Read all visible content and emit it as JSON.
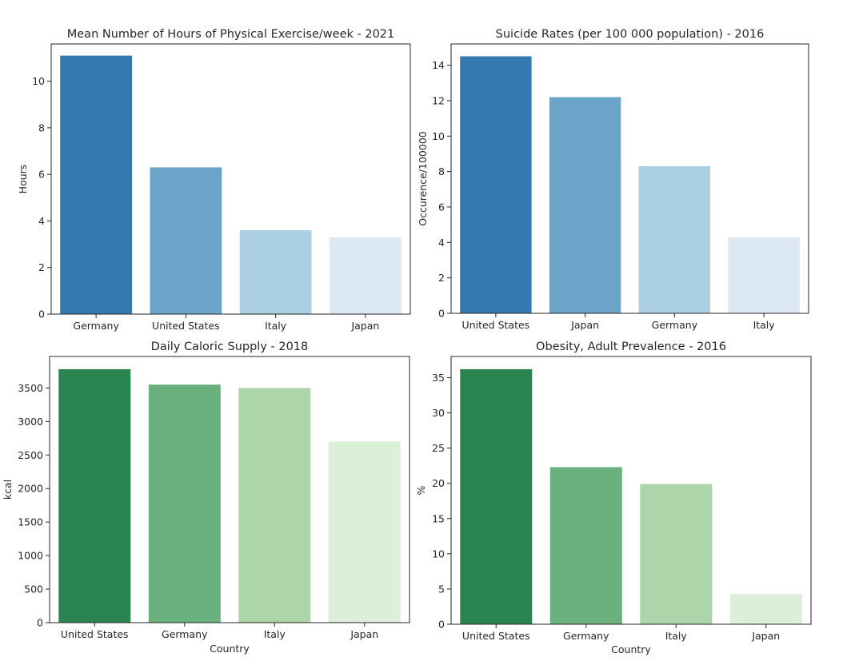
{
  "chart_data": [
    {
      "type": "bar",
      "title": "Mean Number of Hours of Physical Exercise/week - 2021",
      "xlabel": "",
      "ylabel": "Hours",
      "categories": [
        "Germany",
        "United States",
        "Italy",
        "Japan"
      ],
      "values": [
        11.1,
        6.3,
        3.6,
        3.3
      ],
      "ylim": [
        0,
        11.6
      ],
      "yticks": [
        0,
        2,
        4,
        6,
        8,
        10
      ],
      "colors": [
        "#3379b1",
        "#6aa5c9",
        "#aacee2",
        "#dce8f4"
      ]
    },
    {
      "type": "bar",
      "title": "Suicide Rates (per 100 000 population) - 2016",
      "xlabel": "",
      "ylabel": "Occurence/100000",
      "categories": [
        "United States",
        "Japan",
        "Germany",
        "Italy"
      ],
      "values": [
        14.5,
        12.2,
        8.3,
        4.3
      ],
      "ylim": [
        0,
        15.2
      ],
      "yticks": [
        0,
        2,
        4,
        6,
        8,
        10,
        12,
        14
      ],
      "colors": [
        "#3379b1",
        "#6aa5c9",
        "#aacee2",
        "#dce8f4"
      ]
    },
    {
      "type": "bar",
      "title": "Daily Caloric Supply - 2018",
      "xlabel": "Country",
      "ylabel": "kcal",
      "categories": [
        "United States",
        "Germany",
        "Italy",
        "Japan"
      ],
      "values": [
        3780,
        3550,
        3500,
        2700
      ],
      "ylim": [
        0,
        3970
      ],
      "yticks": [
        0,
        500,
        1000,
        1500,
        2000,
        2500,
        3000,
        3500
      ],
      "colors": [
        "#2a8450",
        "#6bb17d",
        "#acd5aa",
        "#dcefd9"
      ]
    },
    {
      "type": "bar",
      "title": "Obesity, Adult Prevalence - 2016",
      "xlabel": "Country",
      "ylabel": "%",
      "categories": [
        "United States",
        "Germany",
        "Italy",
        "Japan"
      ],
      "values": [
        36.2,
        22.3,
        19.9,
        4.3
      ],
      "ylim": [
        0,
        38
      ],
      "yticks": [
        0,
        5,
        10,
        15,
        20,
        25,
        30,
        35
      ],
      "colors": [
        "#2a8450",
        "#6bb17d",
        "#acd5aa",
        "#dcefd9"
      ]
    }
  ]
}
